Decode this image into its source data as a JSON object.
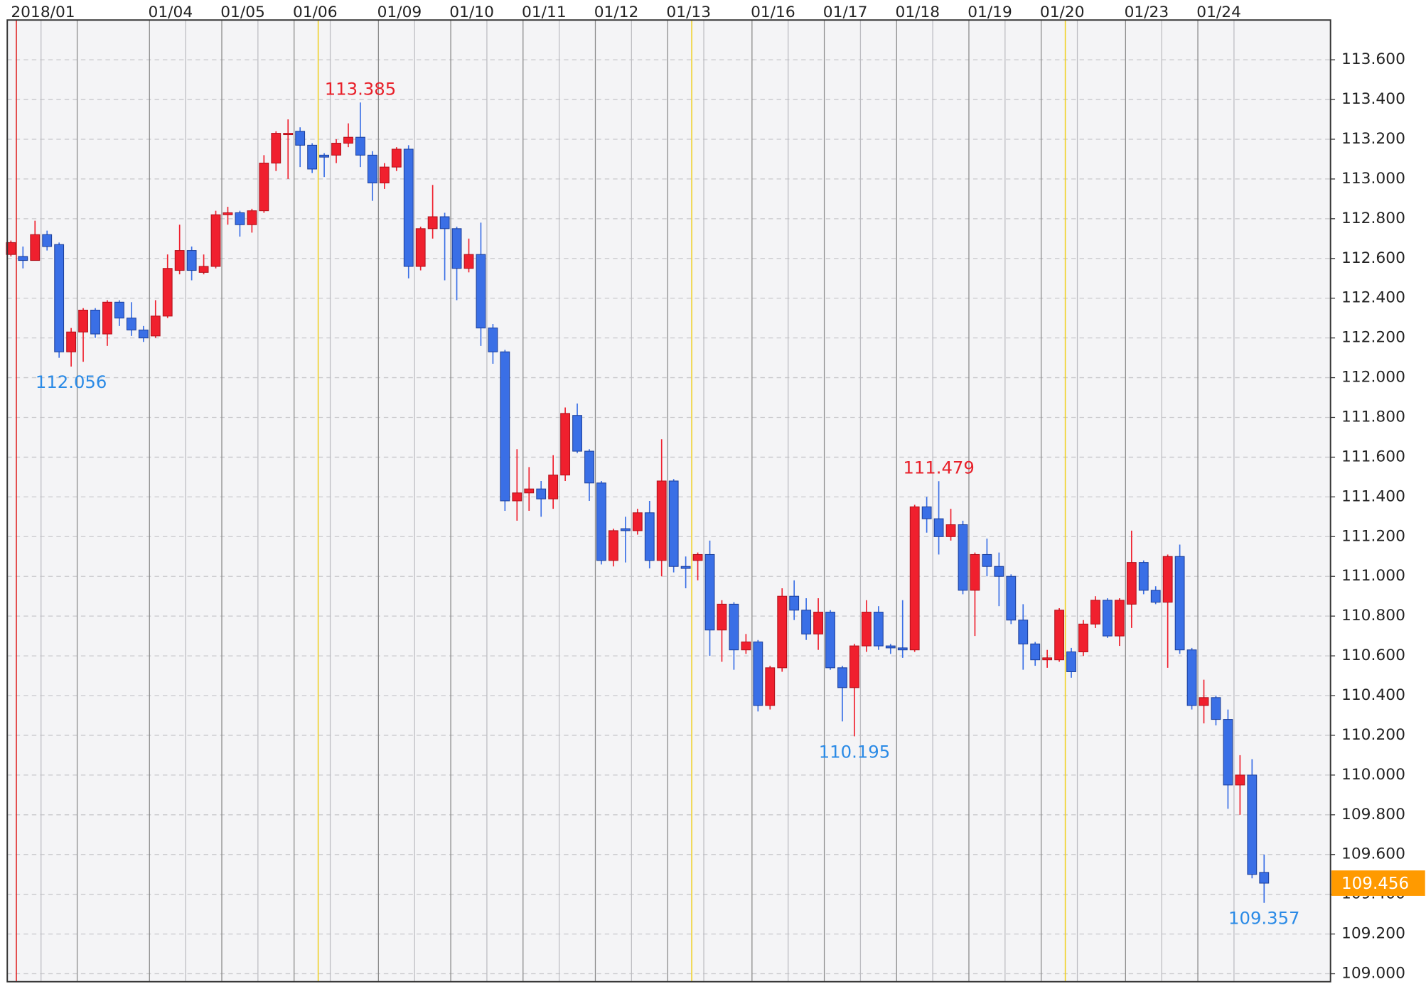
{
  "chart_data": {
    "type": "candlestick",
    "categories": [
      "2018/01",
      null,
      null,
      null,
      null,
      null,
      null,
      null,
      null,
      null,
      null,
      null,
      "01/04",
      null,
      null,
      null,
      null,
      null,
      "01/05",
      null,
      null,
      null,
      null,
      null,
      "01/06",
      null,
      null,
      null,
      null,
      null,
      null,
      "01/09",
      null,
      null,
      null,
      null,
      null,
      "01/10",
      null,
      null,
      null,
      null,
      null,
      "01/11",
      null,
      null,
      null,
      null,
      null,
      "01/12",
      null,
      null,
      null,
      null,
      null,
      "01/13",
      null,
      null,
      null,
      null,
      null,
      null,
      "01/16",
      null,
      null,
      null,
      null,
      null,
      "01/17",
      null,
      null,
      null,
      null,
      null,
      "01/18",
      null,
      null,
      null,
      null,
      null,
      "01/19",
      null,
      null,
      null,
      null,
      null,
      "01/20",
      null,
      null,
      null,
      null,
      null,
      null,
      "01/23",
      null,
      null,
      null,
      null,
      null,
      "01/24",
      null,
      null,
      null,
      null,
      null
    ],
    "open": [
      112.62,
      112.61,
      112.59,
      112.72,
      112.67,
      112.13,
      112.23,
      112.34,
      112.22,
      112.38,
      112.3,
      112.24,
      112.21,
      112.31,
      112.54,
      112.64,
      112.53,
      112.56,
      112.82,
      112.83,
      112.77,
      112.84,
      113.08,
      113.23,
      113.24,
      113.17,
      113.12,
      113.12,
      113.18,
      113.21,
      113.12,
      112.98,
      113.06,
      113.15,
      112.56,
      112.75,
      112.81,
      112.75,
      112.55,
      112.62,
      112.25,
      112.13,
      111.38,
      111.42,
      111.44,
      111.39,
      111.51,
      111.81,
      111.63,
      111.47,
      111.08,
      111.24,
      111.23,
      111.32,
      111.08,
      111.48,
      111.05,
      111.08,
      111.11,
      110.73,
      110.86,
      110.63,
      110.67,
      110.35,
      110.54,
      110.9,
      110.83,
      110.71,
      110.82,
      110.54,
      110.44,
      110.65,
      110.82,
      110.65,
      110.64,
      110.63,
      111.35,
      111.29,
      111.2,
      111.26,
      110.93,
      111.11,
      111.05,
      111.0,
      110.78,
      110.66,
      110.58,
      110.58,
      110.62,
      110.62,
      110.76,
      110.88,
      110.7,
      110.86,
      111.07,
      110.93,
      110.87,
      111.1,
      110.63,
      110.35,
      110.39,
      110.28,
      109.95,
      110.0,
      109.51
    ],
    "high": [
      112.69,
      112.66,
      112.79,
      112.74,
      112.68,
      112.25,
      112.35,
      112.35,
      112.39,
      112.39,
      112.38,
      112.26,
      112.39,
      112.62,
      112.77,
      112.66,
      112.62,
      112.84,
      112.86,
      112.84,
      112.85,
      113.12,
      113.24,
      113.3,
      113.26,
      113.18,
      113.13,
      113.2,
      113.28,
      113.385,
      113.14,
      113.08,
      113.16,
      113.17,
      112.76,
      112.97,
      112.83,
      112.76,
      112.7,
      112.78,
      112.27,
      112.14,
      111.64,
      111.55,
      111.48,
      111.61,
      111.85,
      111.87,
      111.64,
      111.48,
      111.24,
      111.3,
      111.34,
      111.38,
      111.69,
      111.49,
      111.1,
      111.12,
      111.18,
      110.88,
      110.87,
      110.71,
      110.68,
      110.55,
      110.94,
      110.98,
      110.89,
      110.89,
      110.83,
      110.55,
      110.66,
      110.88,
      110.85,
      110.66,
      110.88,
      111.36,
      111.4,
      111.479,
      111.34,
      111.28,
      111.12,
      111.19,
      111.12,
      111.01,
      110.86,
      110.67,
      110.63,
      110.84,
      110.64,
      110.78,
      110.9,
      110.89,
      110.89,
      111.23,
      111.08,
      110.95,
      111.11,
      111.16,
      110.64,
      110.48,
      110.4,
      110.33,
      110.1,
      110.08,
      109.6
    ],
    "low": [
      112.61,
      112.55,
      112.59,
      112.64,
      112.1,
      112.056,
      112.08,
      112.2,
      112.16,
      112.26,
      112.21,
      112.18,
      112.2,
      112.3,
      112.52,
      112.49,
      112.52,
      112.55,
      112.77,
      112.71,
      112.73,
      112.83,
      113.04,
      113.0,
      113.06,
      113.03,
      113.01,
      113.08,
      113.16,
      113.06,
      112.89,
      112.95,
      113.04,
      112.5,
      112.54,
      112.7,
      112.49,
      112.39,
      112.53,
      112.16,
      112.07,
      111.33,
      111.28,
      111.33,
      111.3,
      111.34,
      111.48,
      111.62,
      111.38,
      111.06,
      111.05,
      111.07,
      111.21,
      111.04,
      111.0,
      111.02,
      110.94,
      110.98,
      110.6,
      110.57,
      110.53,
      110.61,
      110.32,
      110.33,
      110.52,
      110.78,
      110.68,
      110.63,
      110.53,
      110.27,
      110.195,
      110.62,
      110.63,
      110.61,
      110.59,
      110.62,
      111.22,
      111.11,
      111.18,
      110.91,
      110.7,
      111.0,
      110.85,
      110.76,
      110.53,
      110.55,
      110.54,
      110.57,
      110.49,
      110.6,
      110.74,
      110.69,
      110.65,
      110.74,
      110.91,
      110.86,
      110.54,
      110.61,
      110.33,
      110.26,
      110.25,
      109.83,
      109.8,
      109.48,
      109.357
    ],
    "close": [
      112.68,
      112.59,
      112.72,
      112.66,
      112.13,
      112.23,
      112.34,
      112.22,
      112.38,
      112.3,
      112.24,
      112.2,
      112.31,
      112.55,
      112.64,
      112.54,
      112.56,
      112.82,
      112.83,
      112.77,
      112.84,
      113.08,
      113.23,
      113.23,
      113.17,
      113.05,
      113.11,
      113.18,
      113.21,
      113.12,
      112.98,
      113.06,
      113.15,
      112.56,
      112.75,
      112.81,
      112.75,
      112.55,
      112.62,
      112.25,
      112.13,
      111.38,
      111.42,
      111.44,
      111.39,
      111.51,
      111.82,
      111.63,
      111.47,
      111.08,
      111.23,
      111.23,
      111.32,
      111.08,
      111.48,
      111.05,
      111.04,
      111.11,
      110.73,
      110.86,
      110.63,
      110.67,
      110.35,
      110.54,
      110.9,
      110.83,
      110.71,
      110.82,
      110.54,
      110.44,
      110.65,
      110.82,
      110.65,
      110.64,
      110.63,
      111.35,
      111.29,
      111.2,
      111.26,
      110.93,
      111.11,
      111.05,
      111.0,
      110.78,
      110.66,
      110.58,
      110.59,
      110.83,
      110.52,
      110.76,
      110.88,
      110.7,
      110.88,
      111.07,
      110.93,
      110.87,
      111.1,
      110.63,
      110.35,
      110.39,
      110.28,
      109.95,
      110.0,
      109.5,
      109.456
    ],
    "up_color": "#f0202e",
    "down_color": "#3a6fe6",
    "high_label_color": "#e8202a",
    "low_label_color": "#2a8ae6",
    "last_color": "#ff9a00",
    "annotations": [
      113.385,
      112.056,
      111.479,
      110.195,
      109.357
    ],
    "ylim": [
      108.96,
      113.8
    ],
    "yticks": [
      {
        "value": 109.0,
        "label": "109.000"
      },
      {
        "value": 109.2,
        "label": "109.200"
      },
      {
        "value": 109.4,
        "label": "109.400"
      },
      {
        "value": 109.6,
        "label": "109.600"
      },
      {
        "value": 109.8,
        "label": "109.800"
      },
      {
        "value": 110.0,
        "label": "110.000"
      },
      {
        "value": 110.2,
        "label": "110.200"
      },
      {
        "value": 110.4,
        "label": "110.400"
      },
      {
        "value": 110.6,
        "label": "110.600"
      },
      {
        "value": 110.8,
        "label": "110.800"
      },
      {
        "value": 111.0,
        "label": "111.000"
      },
      {
        "value": 111.2,
        "label": "111.200"
      },
      {
        "value": 111.4,
        "label": "111.400"
      },
      {
        "value": 111.6,
        "label": "111.600"
      },
      {
        "value": 111.8,
        "label": "111.800"
      },
      {
        "value": 112.0,
        "label": "112.000"
      },
      {
        "value": 112.2,
        "label": "112.200"
      },
      {
        "value": 112.4,
        "label": "112.400"
      },
      {
        "value": 112.6,
        "label": "112.600"
      },
      {
        "value": 112.8,
        "label": "112.800"
      },
      {
        "value": 113.0,
        "label": "113.000"
      },
      {
        "value": 113.2,
        "label": "113.200"
      },
      {
        "value": 113.4,
        "label": "113.400"
      },
      {
        "value": 113.6,
        "label": "113.600"
      }
    ],
    "grid": true
  }
}
